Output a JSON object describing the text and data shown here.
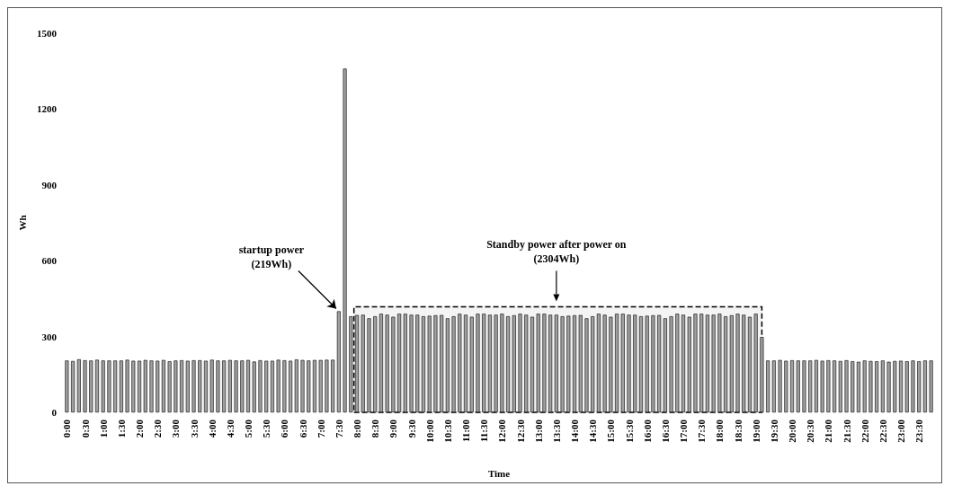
{
  "chart_data": {
    "type": "bar",
    "xlabel": "Time",
    "ylabel": "Wh",
    "categories": [
      "0:00",
      null,
      null,
      "0:30",
      null,
      null,
      "1:00",
      null,
      null,
      "1:30",
      null,
      null,
      "2:00",
      null,
      null,
      "2:30",
      null,
      null,
      "3:00",
      null,
      null,
      "3:30",
      null,
      null,
      "4:00",
      null,
      null,
      "4:30",
      null,
      null,
      "5:00",
      null,
      null,
      "5:30",
      null,
      null,
      "6:00",
      null,
      null,
      "6:30",
      null,
      null,
      "7:00",
      null,
      null,
      "7:30",
      null,
      null,
      "8:00",
      null,
      null,
      "8:30",
      null,
      null,
      "9:00",
      null,
      null,
      "9:30",
      null,
      null,
      "10:00",
      null,
      null,
      "10:30",
      null,
      null,
      "11:00",
      null,
      null,
      "11:30",
      null,
      null,
      "12:00",
      null,
      null,
      "12:30",
      null,
      null,
      "13:00",
      null,
      null,
      "13:30",
      null,
      null,
      "14:00",
      null,
      null,
      "14:30",
      null,
      null,
      "15:00",
      null,
      null,
      "15:30",
      null,
      null,
      "16:00",
      null,
      null,
      "16:30",
      null,
      null,
      "17:00",
      null,
      null,
      "17:30",
      null,
      null,
      "18:00",
      null,
      null,
      "18:30",
      null,
      null,
      "19:00",
      null,
      null,
      "19:30",
      null,
      null,
      "20:00",
      null,
      null,
      "20:30",
      null,
      null,
      "21:00",
      null,
      null,
      "21:30",
      null,
      null,
      "22:00",
      null,
      null,
      "22:30",
      null,
      null,
      "23:00",
      null,
      null,
      "23:30",
      null,
      null
    ],
    "values": [
      205,
      203,
      210,
      206,
      205,
      208,
      205,
      205,
      205,
      205,
      208,
      204,
      204,
      207,
      205,
      204,
      207,
      202,
      205,
      206,
      204,
      206,
      206,
      204,
      208,
      205,
      205,
      207,
      205,
      205,
      207,
      201,
      206,
      204,
      204,
      208,
      206,
      204,
      209,
      207,
      205,
      207,
      207,
      208,
      208,
      400,
      1360,
      380,
      385,
      386,
      372,
      380,
      390,
      386,
      378,
      390,
      390,
      386,
      386,
      380,
      382,
      384,
      385,
      372,
      380,
      390,
      386,
      378,
      390,
      390,
      386,
      386,
      390,
      380,
      384,
      390,
      386,
      378,
      390,
      390,
      386,
      386,
      380,
      382,
      384,
      385,
      372,
      380,
      390,
      386,
      378,
      390,
      390,
      386,
      386,
      380,
      382,
      384,
      385,
      372,
      380,
      390,
      386,
      378,
      390,
      390,
      386,
      386,
      390,
      380,
      384,
      390,
      386,
      378,
      390,
      298,
      205,
      205,
      207,
      204,
      206,
      205,
      205,
      205,
      207,
      204,
      206,
      205,
      203,
      206,
      202,
      200,
      205,
      203,
      202,
      205,
      200,
      203,
      204,
      202,
      205,
      202,
      205,
      205
    ],
    "color": "#a0a0a0",
    "ylim": [
      0,
      1500
    ],
    "yticks": [
      0,
      300,
      600,
      900,
      1200,
      1500
    ],
    "grid": false,
    "annotations": [
      {
        "text": "startup power\n(219Wh)",
        "x": "7:30",
        "y": 400
      }
    ],
    "bands": [
      {
        "axis": "x",
        "from": "8:00",
        "to": "19:00",
        "label": "Standby power after power on\n(2304Wh)",
        "color": "#f4f4f4"
      }
    ]
  }
}
